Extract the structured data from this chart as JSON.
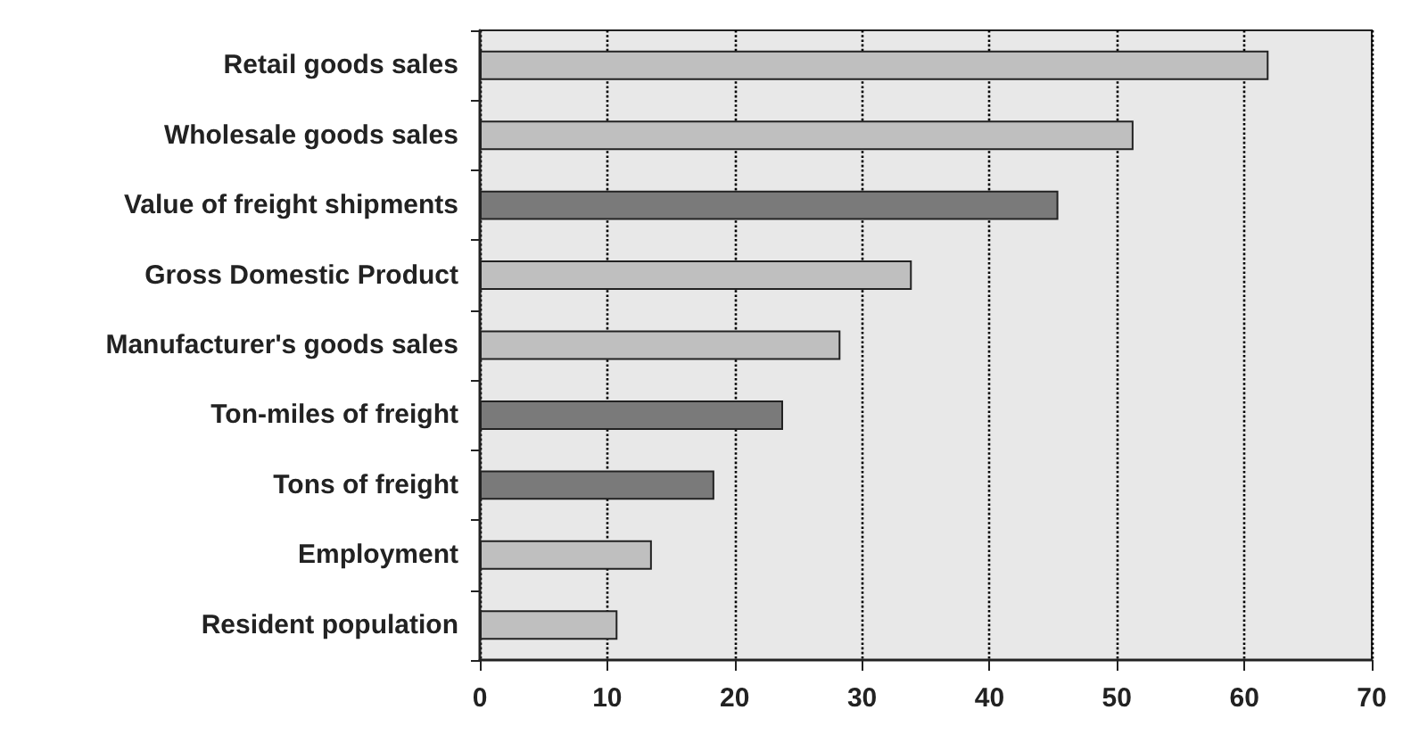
{
  "chart_data": {
    "type": "bar",
    "orientation": "horizontal",
    "categories": [
      "Retail goods sales",
      "Wholesale goods sales",
      "Value of freight shipments",
      "Gross Domestic Product",
      "Manufacturer's goods sales",
      "Ton-miles of freight",
      "Tons of freight",
      "Employment",
      "Resident population"
    ],
    "values": [
      61.9,
      51.3,
      45.4,
      33.9,
      28.3,
      23.8,
      18.4,
      13.5,
      10.8
    ],
    "colors": [
      "#bfbfbf",
      "#bfbfbf",
      "#7a7a7a",
      "#bfbfbf",
      "#bfbfbf",
      "#7a7a7a",
      "#7a7a7a",
      "#bfbfbf",
      "#bfbfbf"
    ],
    "xlim": [
      0,
      70
    ],
    "xticks": [
      0,
      10,
      20,
      30,
      40,
      50,
      60,
      70
    ],
    "grid": "x"
  }
}
